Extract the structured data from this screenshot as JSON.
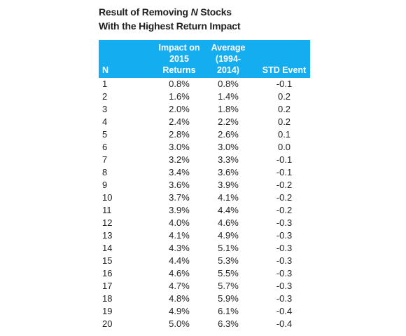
{
  "title": {
    "line1_before": "Result of Removing",
    "line1_italic": "N",
    "line1_after": "Stocks",
    "line2": "With the Highest Return Impact"
  },
  "table": {
    "headers": [
      [
        "N"
      ],
      [
        "Impact on",
        "2015",
        "Returns"
      ],
      [
        "Average",
        "(1994-",
        "2014)"
      ],
      [
        "STD Event"
      ]
    ],
    "rows": [
      [
        "1",
        "0.8%",
        "0.8%",
        "-0.1"
      ],
      [
        "2",
        "1.6%",
        "1.4%",
        "0.2"
      ],
      [
        "3",
        "2.0%",
        "1.8%",
        "0.2"
      ],
      [
        "4",
        "2.4%",
        "2.2%",
        "0.2"
      ],
      [
        "5",
        "2.8%",
        "2.6%",
        "0.1"
      ],
      [
        "6",
        "3.0%",
        "3.0%",
        "0.0"
      ],
      [
        "7",
        "3.2%",
        "3.3%",
        "-0.1"
      ],
      [
        "8",
        "3.4%",
        "3.6%",
        "-0.1"
      ],
      [
        "9",
        "3.6%",
        "3.9%",
        "-0.2"
      ],
      [
        "10",
        "3.7%",
        "4.1%",
        "-0.2"
      ],
      [
        "11",
        "3.9%",
        "4.4%",
        "-0.2"
      ],
      [
        "12",
        "4.0%",
        "4.6%",
        "-0.3"
      ],
      [
        "13",
        "4.1%",
        "4.9%",
        "-0.3"
      ],
      [
        "14",
        "4.3%",
        "5.1%",
        "-0.3"
      ],
      [
        "15",
        "4.4%",
        "5.3%",
        "-0.3"
      ],
      [
        "16",
        "4.6%",
        "5.5%",
        "-0.3"
      ],
      [
        "17",
        "4.7%",
        "5.7%",
        "-0.3"
      ],
      [
        "18",
        "4.8%",
        "5.9%",
        "-0.3"
      ],
      [
        "19",
        "4.9%",
        "6.1%",
        "-0.4"
      ],
      [
        "20",
        "5.0%",
        "6.3%",
        "-0.4"
      ]
    ]
  }
}
